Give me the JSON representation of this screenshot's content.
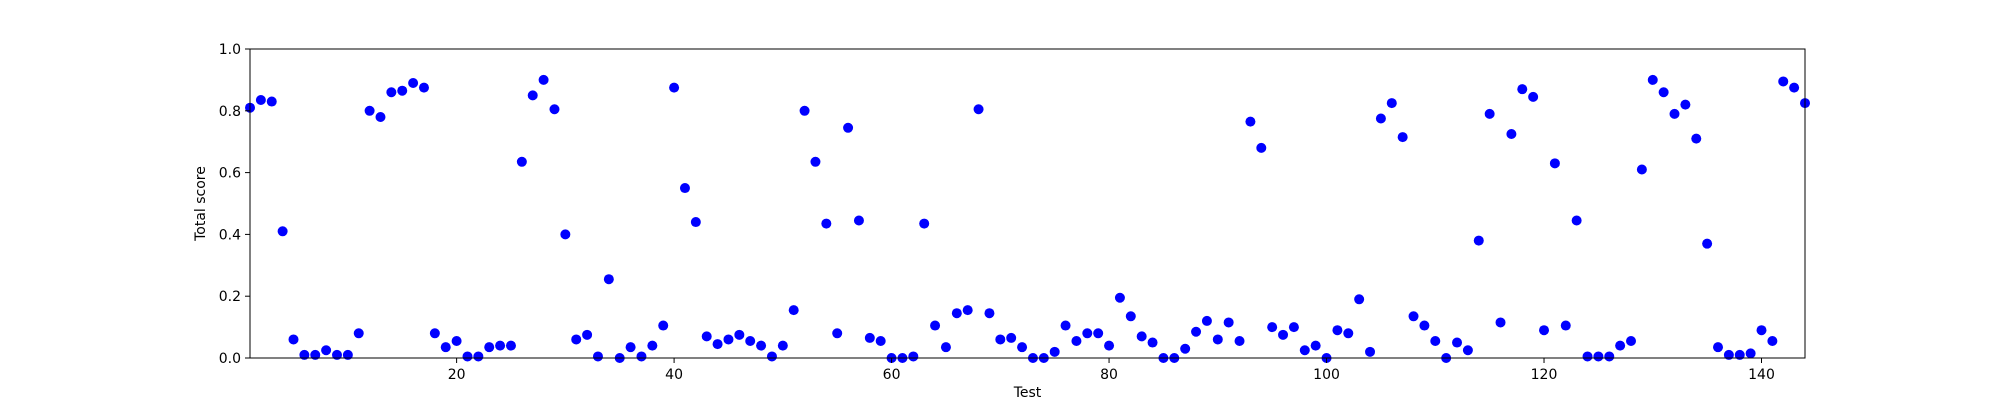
{
  "chart_data": {
    "type": "scatter",
    "title": "",
    "xlabel": "Test",
    "ylabel": "Total score",
    "xlim": [
      1,
      144
    ],
    "ylim": [
      0,
      1.0
    ],
    "x_ticks": [
      20,
      40,
      60,
      80,
      100,
      120,
      140
    ],
    "y_ticks": [
      0.0,
      0.2,
      0.4,
      0.6,
      0.8,
      1.0
    ],
    "x_tick_labels": [
      "20",
      "40",
      "60",
      "80",
      "100",
      "120",
      "140"
    ],
    "y_tick_labels": [
      "0.0",
      "0.2",
      "0.4",
      "0.6",
      "0.8",
      "1.0"
    ],
    "grid": false,
    "marker_color": "#0000ff",
    "series": [
      {
        "x": [
          1,
          2,
          3,
          4,
          5,
          6,
          7,
          8,
          9,
          10,
          11,
          12,
          13,
          14,
          15,
          16,
          17,
          18,
          19,
          20,
          21,
          22,
          23,
          24,
          25,
          26,
          27,
          28,
          29,
          30,
          31,
          32,
          33,
          34,
          35,
          36,
          37,
          38,
          39,
          40,
          41,
          42,
          43,
          44,
          45,
          46,
          47,
          48,
          49,
          50,
          51,
          52,
          53,
          54,
          55,
          56,
          57,
          58,
          59,
          60,
          61,
          62,
          63,
          64,
          65,
          66,
          67,
          68,
          69,
          70,
          71,
          72,
          73,
          74,
          75,
          76,
          77,
          78,
          79,
          80,
          81,
          82,
          83,
          84,
          85,
          86,
          87,
          88,
          89,
          90,
          91,
          92,
          93,
          94,
          95,
          96,
          97,
          98,
          99,
          100,
          101,
          102,
          103,
          104,
          105,
          106,
          107,
          108,
          109,
          110,
          111,
          112,
          113,
          114,
          115,
          116,
          117,
          118,
          119,
          120,
          121,
          122,
          123,
          124,
          125,
          126,
          127,
          128,
          129,
          130,
          131,
          132,
          133,
          134,
          135,
          136,
          137,
          138,
          139,
          140,
          141,
          142,
          143,
          144
        ],
        "y": [
          0.81,
          0.835,
          0.83,
          0.41,
          0.06,
          0.01,
          0.01,
          0.025,
          0.01,
          0.01,
          0.08,
          0.8,
          0.78,
          0.86,
          0.865,
          0.89,
          0.875,
          0.08,
          0.035,
          0.055,
          0.005,
          0.005,
          0.035,
          0.04,
          0.04,
          0.635,
          0.85,
          0.9,
          0.805,
          0.4,
          0.06,
          0.075,
          0.005,
          0.255,
          0.0,
          0.035,
          0.005,
          0.04,
          0.105,
          0.875,
          0.55,
          0.44,
          0.07,
          0.045,
          0.06,
          0.075,
          0.055,
          0.04,
          0.005,
          0.04,
          0.155,
          0.8,
          0.635,
          0.435,
          0.08,
          0.745,
          0.445,
          0.065,
          0.055,
          0.0,
          0.0,
          0.005,
          0.435,
          0.105,
          0.035,
          0.145,
          0.155,
          0.805,
          0.145,
          0.06,
          0.065,
          0.035,
          0.0,
          0.0,
          0.02,
          0.105,
          0.055,
          0.08,
          0.08,
          0.04,
          0.195,
          0.135,
          0.07,
          0.05,
          0.0,
          0.0,
          0.03,
          0.085,
          0.12,
          0.06,
          0.115,
          0.055,
          0.765,
          0.68,
          0.1,
          0.075,
          0.1,
          0.025,
          0.04,
          0.0,
          0.09,
          0.08,
          0.19,
          0.02,
          0.775,
          0.825,
          0.715,
          0.135,
          0.105,
          0.055,
          0.0,
          0.05,
          0.025,
          0.38,
          0.79,
          0.115,
          0.725,
          0.87,
          0.845,
          0.09,
          0.63,
          0.105,
          0.445,
          0.005,
          0.005,
          0.005,
          0.04,
          0.055,
          0.61,
          0.9,
          0.86,
          0.79,
          0.82,
          0.71,
          0.37,
          0.035,
          0.01,
          0.01,
          0.015,
          0.09,
          0.055,
          0.895,
          0.875,
          0.825
        ]
      }
    ]
  }
}
